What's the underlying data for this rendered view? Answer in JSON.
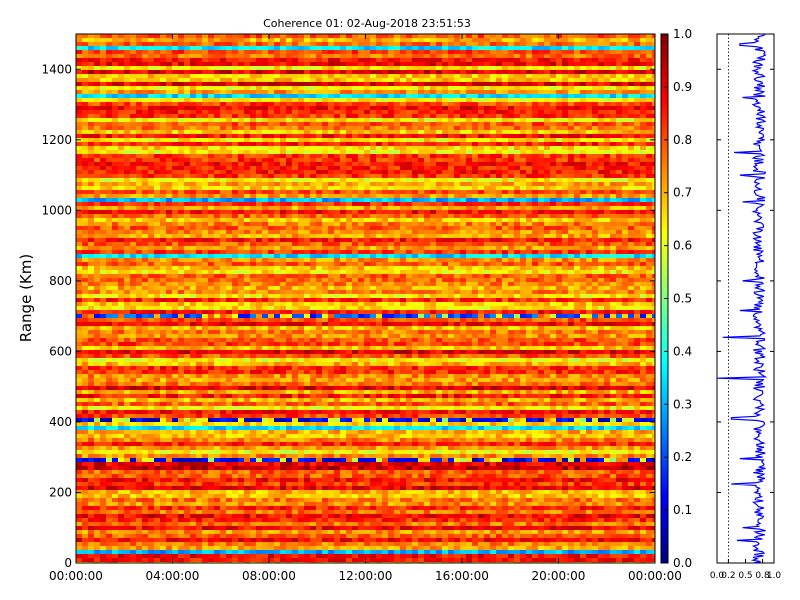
{
  "figure": {
    "title": "Coherence 01: 02-Aug-2018 23:51:53",
    "background": "#ffffff"
  },
  "chart_data": [
    {
      "type": "heatmap",
      "title": "Coherence 01: 02-Aug-2018 23:51:53",
      "xlabel": "",
      "ylabel": "Range (Km)",
      "x_ticks": [
        "00:00:00",
        "04:00:00",
        "08:00:00",
        "12:00:00",
        "16:00:00",
        "20:00:00",
        "00:00:00"
      ],
      "y_ticks": [
        0,
        200,
        400,
        600,
        800,
        1000,
        1200,
        1400
      ],
      "ylim": [
        0,
        1500
      ],
      "x_range": [
        "00:00:00",
        "24:00:00"
      ],
      "colormap": "jet",
      "clim": [
        0.0,
        1.0
      ],
      "bands": [
        {
          "range_km": [
            20,
            32
          ],
          "value": 0.3
        },
        {
          "range_km": [
            208,
            216
          ],
          "value": 0.9
        },
        {
          "range_km": [
            264,
            272
          ],
          "value": 0.92
        },
        {
          "range_km": [
            290,
            298
          ],
          "value": 0.1
        },
        {
          "range_km": [
            304,
            314
          ],
          "value": 0.05
        },
        {
          "range_km": [
            378,
            388
          ],
          "value": 0.35
        },
        {
          "range_km": [
            404,
            414
          ],
          "value": 0.1
        },
        {
          "range_km": [
            490,
            498
          ],
          "value": 0.9
        },
        {
          "range_km": [
            590,
            600
          ],
          "value": 0.9
        },
        {
          "range_km": [
            700,
            710
          ],
          "value": 0.2
        },
        {
          "range_km": [
            712,
            722
          ],
          "value": 0.08
        },
        {
          "range_km": [
            748,
            756
          ],
          "value": 0.3
        },
        {
          "range_km": [
            866,
            876
          ],
          "value": 0.35
        },
        {
          "range_km": [
            1020,
            1030
          ],
          "value": 0.3
        },
        {
          "range_km": [
            1156,
            1164
          ],
          "value": 0.9
        },
        {
          "range_km": [
            1320,
            1330
          ],
          "value": 0.35
        },
        {
          "range_km": [
            1460,
            1470
          ],
          "value": 0.35
        }
      ]
    },
    {
      "type": "line",
      "title": "",
      "xlabel": "",
      "ylabel": "",
      "x_ticks": [
        "0.0",
        "0.2",
        "0.5",
        "0.8",
        "1.0"
      ],
      "xlim": [
        0,
        1
      ],
      "ylim": [
        0,
        1500
      ],
      "reference_line_x": 0.2,
      "line_color": "#0000ff",
      "description_of_values": "Mean coherence per range gate, mostly 0.7-0.9 with dips",
      "dips": [
        {
          "range_km": 65,
          "value": 0.35
        },
        {
          "range_km": 100,
          "value": 0.45
        },
        {
          "range_km": 225,
          "value": 0.25
        },
        {
          "range_km": 295,
          "value": 0.4
        },
        {
          "range_km": 410,
          "value": 0.25
        },
        {
          "range_km": 525,
          "value": 0.0
        },
        {
          "range_km": 640,
          "value": 0.1
        },
        {
          "range_km": 715,
          "value": 0.4
        },
        {
          "range_km": 800,
          "value": 0.45
        },
        {
          "range_km": 1025,
          "value": 0.45
        },
        {
          "range_km": 1100,
          "value": 0.4
        },
        {
          "range_km": 1165,
          "value": 0.3
        },
        {
          "range_km": 1320,
          "value": 0.45
        },
        {
          "range_km": 1470,
          "value": 0.4
        }
      ]
    }
  ],
  "colorbar": {
    "ticks": [
      "0.0",
      "0.1",
      "0.2",
      "0.3",
      "0.4",
      "0.5",
      "0.6",
      "0.7",
      "0.8",
      "0.9",
      "1.0"
    ]
  },
  "profile_y_ticks": [
    "",
    "",
    "",
    "",
    "",
    "",
    "",
    ""
  ]
}
